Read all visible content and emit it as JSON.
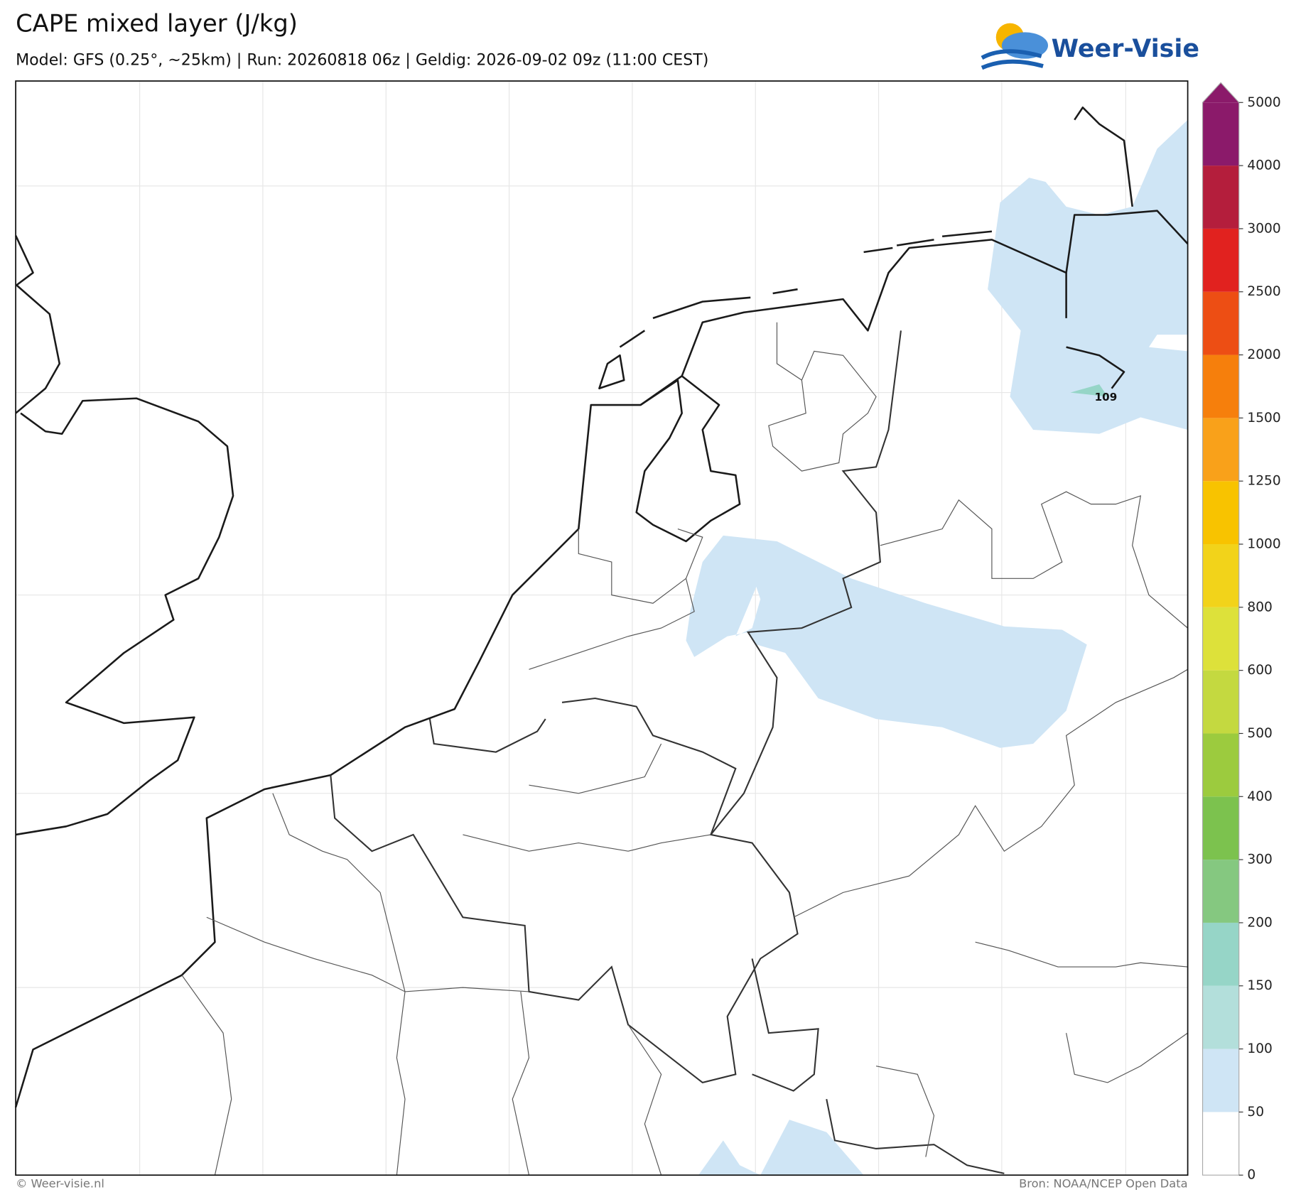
{
  "header": {
    "title": "CAPE mixed layer (J/kg)",
    "subtitle": "Model: GFS (0.25°, ~25km)  |  Run: 20260818 06z  |  Geldig: 2026-09-02 09z (11:00 CEST)",
    "logo": "Weer-Visie"
  },
  "annotations": [
    {
      "label": "109"
    }
  ],
  "colorbar": {
    "ticks": [
      0,
      50,
      100,
      150,
      200,
      300,
      400,
      500,
      600,
      800,
      1000,
      1250,
      1500,
      2000,
      2500,
      3000,
      4000,
      5000
    ],
    "colors": [
      "#ffffff",
      "#cfe5f5",
      "#b3dfdb",
      "#96d5c7",
      "#85c880",
      "#7cc24e",
      "#9ccb3e",
      "#c4d940",
      "#dde13a",
      "#f2d31a",
      "#f8c300",
      "#f9a11a",
      "#f67f0c",
      "#ed4e14",
      "#e1221f",
      "#b41e3c",
      "#8b1a6a",
      "#8b1a6a"
    ]
  },
  "footer": {
    "left": "© Weer-visie.nl",
    "right": "Bron: NOAA/NCEP Open Data"
  }
}
